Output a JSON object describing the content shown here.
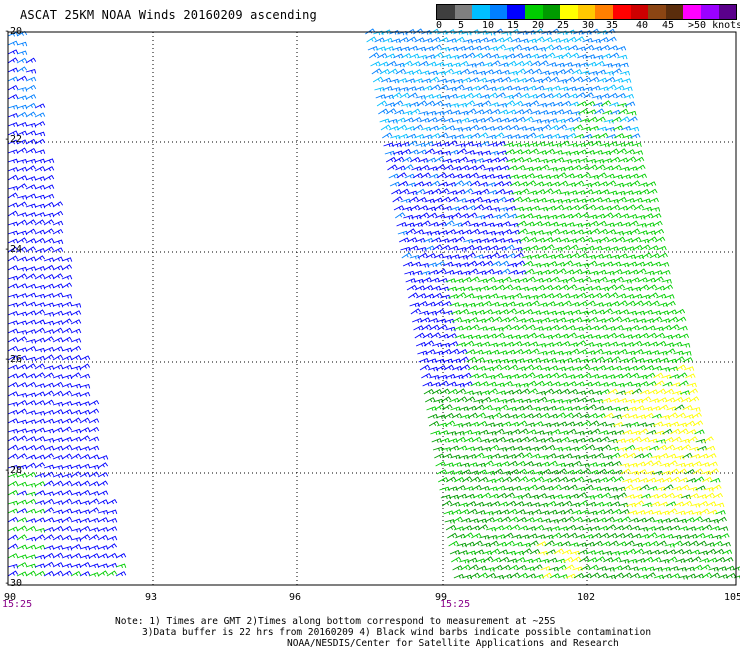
{
  "title": "ASCAT 25KM NOAA Winds 20160209 ascending",
  "legend": {
    "colors": [
      "#3f3f3f",
      "#7f7f7f",
      "#00bfff",
      "#007fff",
      "#0000ff",
      "#00cd00",
      "#009b00",
      "#ffff00",
      "#ffc800",
      "#ff7f00",
      "#ff0000",
      "#cd0000",
      "#8b4513",
      "#5a2d0c",
      "#ff00ff",
      "#9b00ff",
      "#5a008b"
    ],
    "labels": [
      "0",
      "5",
      "10",
      "15",
      "20",
      "25",
      "30",
      "35",
      "40",
      "45",
      ">50 knots"
    ]
  },
  "axes": {
    "lat_labels": [
      "-20",
      "-22",
      "-24",
      "-26",
      "-28",
      "-30"
    ],
    "lon_labels": [
      "90",
      "93",
      "96",
      "99",
      "102",
      "105"
    ],
    "time_labels": [
      "15:25",
      "15:25"
    ]
  },
  "swaths": [
    {
      "name": "west-swath",
      "time": "15:25"
    },
    {
      "name": "east-swath",
      "time": "15:25"
    }
  ],
  "notes": [
    "Note: 1) Times are GMT 2)Times along bottom correspond to measurement at ~25S",
    "3)Data buffer is 22 hrs from 20160209 4) Black wind barbs indicate possible contamination",
    "NOAA/NESDIS/Center for Satellite Applications and Research"
  ]
}
